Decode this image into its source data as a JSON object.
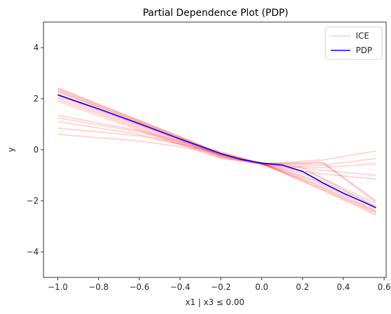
{
  "chart_data": {
    "type": "line",
    "title": "Partial Dependence Plot (PDP)",
    "xlabel": "x1 | x3 ≤ 0.00",
    "ylabel": "y",
    "xlim": [
      -1.07,
      0.61
    ],
    "ylim": [
      -5,
      5
    ],
    "xticks": [
      -1.0,
      -0.8,
      -0.6,
      -0.4,
      -0.2,
      0.0,
      0.2,
      0.4,
      0.6
    ],
    "xtick_labels": [
      "−1.0",
      "−0.8",
      "−0.6",
      "−0.4",
      "−0.2",
      "0.0",
      "0.2",
      "0.4",
      "0.6"
    ],
    "yticks": [
      -4,
      -2,
      0,
      2,
      4
    ],
    "ytick_labels": [
      "−4",
      "−2",
      "0",
      "2",
      "4"
    ],
    "grid": false,
    "legend_position": "upper right",
    "colors": {
      "ice": "#ff0000",
      "pdp": "#0000ff"
    },
    "series": [
      {
        "name": "ICE",
        "lines": [
          {
            "x": [
              -1.0,
              -0.4,
              -0.2,
              0.0,
              0.25,
              0.56
            ],
            "y": [
              2.42,
              0.52,
              -0.15,
              -0.55,
              -1.4,
              -2.55
            ]
          },
          {
            "x": [
              -1.0,
              -0.4,
              -0.2,
              0.0,
              0.25,
              0.56
            ],
            "y": [
              2.35,
              0.48,
              -0.17,
              -0.55,
              -1.38,
              -2.5
            ]
          },
          {
            "x": [
              -1.0,
              -0.4,
              -0.2,
              0.0,
              0.25,
              0.56
            ],
            "y": [
              2.28,
              0.45,
              -0.2,
              -0.55,
              -1.32,
              -2.45
            ]
          },
          {
            "x": [
              -1.0,
              -0.4,
              -0.2,
              0.0,
              0.25,
              0.56
            ],
            "y": [
              2.2,
              0.4,
              -0.23,
              -0.55,
              -1.28,
              -2.42
            ]
          },
          {
            "x": [
              -1.0,
              -0.4,
              -0.2,
              0.0,
              0.25,
              0.56
            ],
            "y": [
              2.12,
              0.35,
              -0.25,
              -0.55,
              -1.2,
              -2.38
            ]
          },
          {
            "x": [
              -1.0,
              -0.4,
              -0.2,
              0.0,
              0.25,
              0.56
            ],
            "y": [
              2.05,
              0.3,
              -0.28,
              -0.55,
              -1.15,
              -2.3
            ]
          },
          {
            "x": [
              -1.0,
              -0.4,
              -0.2,
              0.0,
              0.25,
              0.56
            ],
            "y": [
              1.98,
              0.25,
              -0.3,
              -0.55,
              -1.05,
              -2.2
            ]
          },
          {
            "x": [
              -1.0,
              -0.4,
              -0.2,
              0.0,
              0.25,
              0.56
            ],
            "y": [
              1.9,
              0.2,
              -0.33,
              -0.55,
              -0.95,
              -2.1
            ]
          },
          {
            "x": [
              -1.0,
              -0.4,
              -0.2,
              0.0,
              0.3,
              0.56
            ],
            "y": [
              2.4,
              0.5,
              -0.18,
              -0.55,
              -0.5,
              -2.0
            ]
          },
          {
            "x": [
              -1.0,
              -0.4,
              -0.2,
              0.0,
              0.3,
              0.56
            ],
            "y": [
              2.3,
              0.45,
              -0.2,
              -0.55,
              -0.52,
              -2.05
            ]
          },
          {
            "x": [
              -1.0,
              -0.4,
              -0.2,
              0.0,
              0.2,
              0.56
            ],
            "y": [
              2.15,
              0.38,
              -0.24,
              -0.55,
              -0.7,
              -2.25
            ]
          },
          {
            "x": [
              -1.0,
              -0.6,
              -0.3,
              0.0,
              0.3,
              0.56
            ],
            "y": [
              1.35,
              0.75,
              0.15,
              -0.55,
              -0.8,
              -1.0
            ]
          },
          {
            "x": [
              -1.0,
              -0.6,
              -0.3,
              0.0,
              0.3,
              0.56
            ],
            "y": [
              1.25,
              0.7,
              0.1,
              -0.55,
              -0.7,
              -0.55
            ]
          },
          {
            "x": [
              -1.0,
              -0.6,
              -0.3,
              0.0,
              0.3,
              0.56
            ],
            "y": [
              0.85,
              0.55,
              0.05,
              -0.55,
              -0.4,
              -0.05
            ]
          },
          {
            "x": [
              -1.0,
              -0.6,
              -0.3,
              0.0,
              0.3,
              0.56
            ],
            "y": [
              0.6,
              0.35,
              0.0,
              -0.55,
              -0.6,
              -0.35
            ]
          },
          {
            "x": [
              -1.0,
              -0.6,
              -0.3,
              0.0,
              0.3,
              0.56
            ],
            "y": [
              1.1,
              0.6,
              0.05,
              -0.55,
              -0.95,
              -1.15
            ]
          }
        ]
      },
      {
        "name": "PDP",
        "x": [
          -1.0,
          -0.8,
          -0.6,
          -0.4,
          -0.2,
          -0.1,
          0.0,
          0.1,
          0.2,
          0.3,
          0.4,
          0.5,
          0.56
        ],
        "y": [
          2.15,
          1.6,
          1.02,
          0.42,
          -0.15,
          -0.38,
          -0.52,
          -0.6,
          -0.85,
          -1.3,
          -1.7,
          -2.05,
          -2.27
        ]
      }
    ]
  }
}
